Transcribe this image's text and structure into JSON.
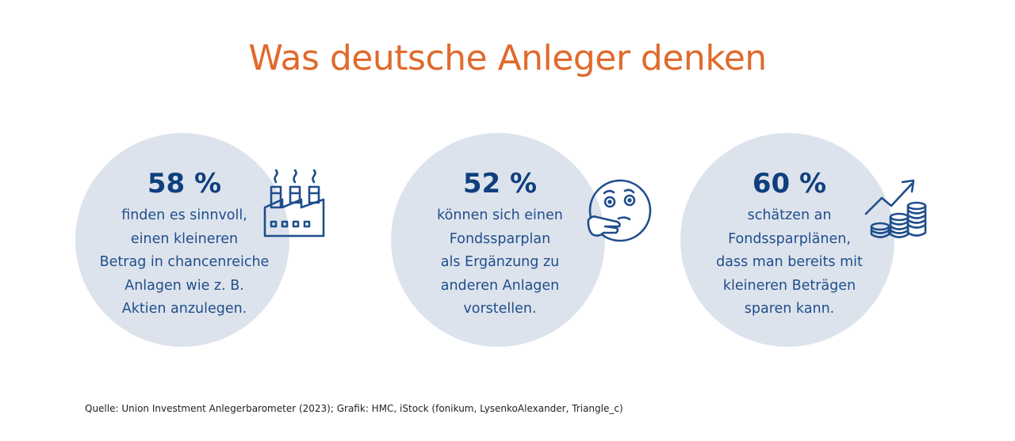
{
  "title": "Was deutsche Anleger denken",
  "stats": [
    {
      "percent": "58 %",
      "lines": [
        "finden es sinnvoll,",
        "einen kleineren",
        "Betrag in chancenreiche",
        "Anlagen wie z. B.",
        "Aktien anzulegen."
      ],
      "icon": "factory-icon"
    },
    {
      "percent": "52 %",
      "lines": [
        "können sich einen",
        "Fondssparplan",
        "als Ergänzung zu",
        "anderen Anlagen",
        "vorstellen."
      ],
      "icon": "thinking-face-icon"
    },
    {
      "percent": "60 %",
      "lines": [
        "schätzen an",
        "Fondssparplänen,",
        "dass man bereits mit",
        "kleineren Beträgen",
        "sparen kann."
      ],
      "icon": "coins-growth-icon"
    }
  ],
  "source": "Quelle: Union Investment Anlegerbarometer (2023); Grafik: HMC, iStock (fonikum, LysenkoAlexander, Triangle_c)",
  "colors": {
    "title": "#e06a2c",
    "text": "#1f4e8c",
    "circle": "#dde3ec"
  }
}
